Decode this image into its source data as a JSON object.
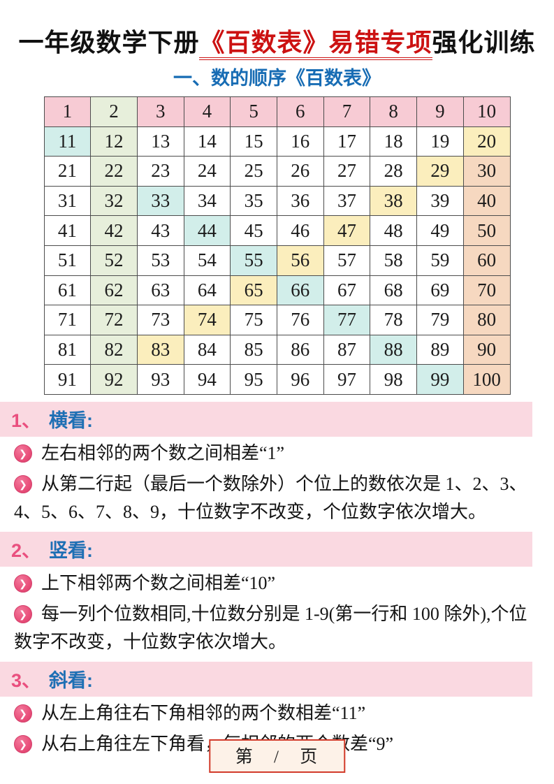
{
  "title": {
    "prefix": "一年级数学下册",
    "highlight": "《百数表》易错专项",
    "suffix": "强化训练",
    "highlight_color": "#cc1212"
  },
  "subtitle": "一、数的顺序《百数表》",
  "subtitle_color": "#176cb4",
  "table": {
    "rows": [
      [
        1,
        2,
        3,
        4,
        5,
        6,
        7,
        8,
        9,
        10
      ],
      [
        11,
        12,
        13,
        14,
        15,
        16,
        17,
        18,
        19,
        20
      ],
      [
        21,
        22,
        23,
        24,
        25,
        26,
        27,
        28,
        29,
        30
      ],
      [
        31,
        32,
        33,
        34,
        35,
        36,
        37,
        38,
        39,
        40
      ],
      [
        41,
        42,
        43,
        44,
        45,
        46,
        47,
        48,
        49,
        50
      ],
      [
        51,
        52,
        53,
        54,
        55,
        56,
        57,
        58,
        59,
        60
      ],
      [
        61,
        62,
        63,
        64,
        65,
        66,
        67,
        68,
        69,
        70
      ],
      [
        71,
        72,
        73,
        74,
        75,
        76,
        77,
        78,
        79,
        80
      ],
      [
        81,
        82,
        83,
        84,
        85,
        86,
        87,
        88,
        89,
        90
      ],
      [
        91,
        92,
        93,
        94,
        95,
        96,
        97,
        98,
        99,
        100
      ]
    ],
    "palette": {
      "pink": "#f7cbd4",
      "green": "#e7efdb",
      "cyan": "#d2eeea",
      "yellow": "#fbeebd",
      "salmon": "#f6d8c0"
    },
    "highlights": {
      "pink": [
        1,
        3,
        4,
        5,
        6,
        7,
        8,
        9,
        10
      ],
      "green": [
        2,
        12,
        22,
        32,
        42,
        52,
        62,
        72,
        82,
        92
      ],
      "cyan": [
        11,
        33,
        44,
        55,
        66,
        77,
        88,
        99
      ],
      "yellow": [
        20,
        29,
        38,
        47,
        56,
        65,
        74,
        83
      ],
      "salmon": [
        30,
        40,
        50,
        60,
        70,
        80,
        90,
        100
      ]
    }
  },
  "bullet_icon": "❯",
  "section_colors": {
    "number": "#e94f7e",
    "word": "#1e6fb4",
    "banner_bg": "#fad9e1"
  },
  "sections": [
    {
      "number": "1、",
      "title": "横看:",
      "bullets": [
        "左右相邻的两个数之间相差“1”",
        "从第二行起（最后一个数除外）个位上的数依次是 1、2、3、4、5、6、7、8、9，十位数字不改变，个位数字依次增大。"
      ]
    },
    {
      "number": "2、",
      "title": "竖看:",
      "bullets": [
        "上下相邻两个数之间相差“10”",
        "每一列个位数相同,十位数分别是 1-9(第一行和 100 除外),个位数字不改变，十位数字依次增大。"
      ]
    },
    {
      "number": "3、",
      "title": "斜看:",
      "bullets": [
        "从左上角往右下角相邻的两个数相差“11”",
        "从右上角往左下角看，每相邻的两个数差“9”"
      ]
    }
  ],
  "footer": {
    "text": "第 / 页"
  }
}
